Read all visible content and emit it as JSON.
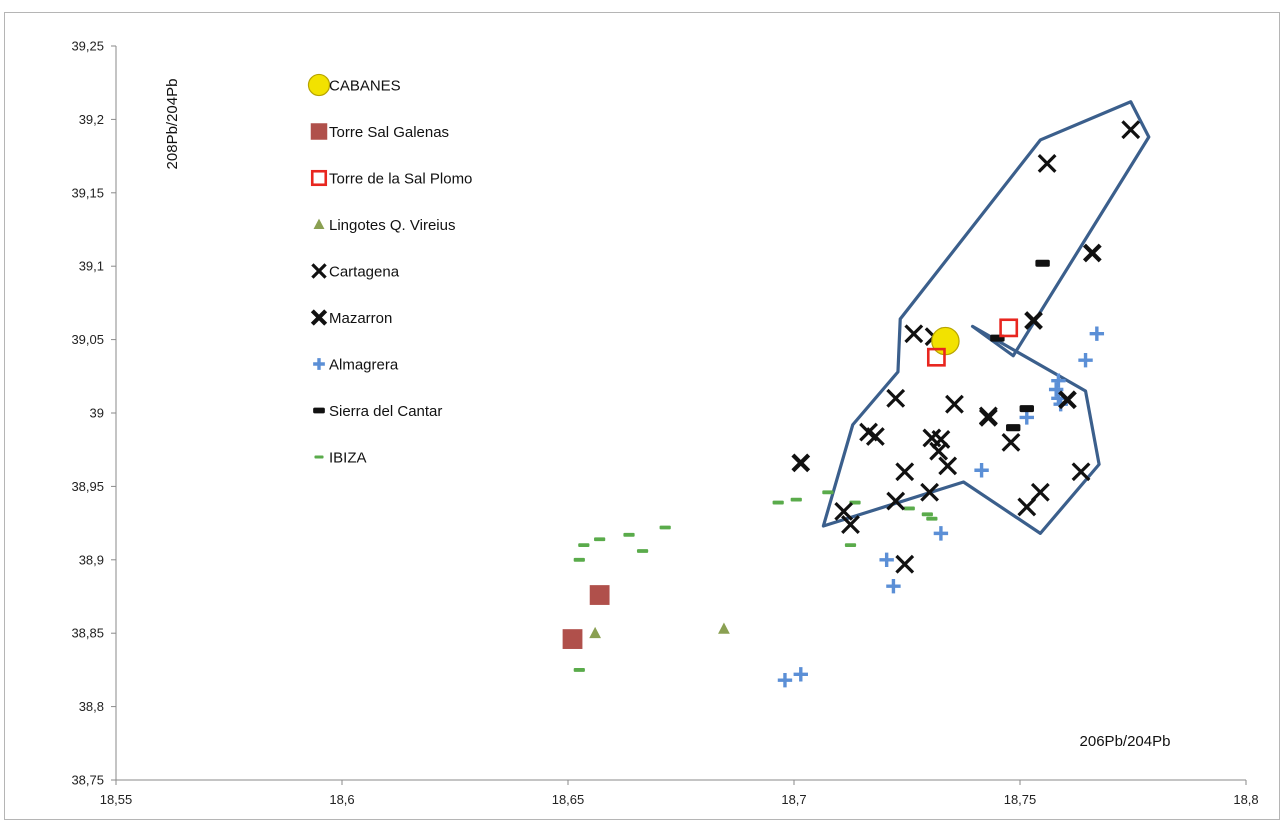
{
  "chart_data": {
    "type": "scatter",
    "title": "",
    "xlabel": "206Pb/204Pb",
    "ylabel": "208Pb/204Pb",
    "xlim": [
      18.55,
      18.8
    ],
    "ylim": [
      38.75,
      39.25
    ],
    "x_ticks": [
      "18,55",
      "18,6",
      "18,65",
      "18,7",
      "18,75",
      "18,8"
    ],
    "y_ticks": [
      "38,75",
      "38,8",
      "38,85",
      "38,9",
      "38,95",
      "39",
      "39,05",
      "39,1",
      "39,15",
      "39,2",
      "39,25"
    ],
    "grid": false,
    "legend_position": "top-left",
    "series": [
      {
        "name": "CABANES",
        "marker": "circle",
        "color": "#f2e200",
        "points": [
          [
            18.7335,
            39.049
          ]
        ]
      },
      {
        "name": "Torre Sal Galenas",
        "marker": "filled-square",
        "color": "#b0504b",
        "points": [
          [
            18.651,
            38.846
          ],
          [
            18.657,
            38.876
          ]
        ]
      },
      {
        "name": "Torre de la Sal Plomo",
        "marker": "open-square",
        "color": "#e8261f",
        "points": [
          [
            18.7315,
            39.038
          ],
          [
            18.7475,
            39.058
          ]
        ]
      },
      {
        "name": "Lingotes Q. Vireius",
        "marker": "triangle",
        "color": "#8aa052",
        "points": [
          [
            18.656,
            38.85
          ],
          [
            18.6845,
            38.853
          ]
        ]
      },
      {
        "name": "Cartagena",
        "marker": "x",
        "color": "#111111",
        "points": [
          [
            18.7265,
            39.054
          ],
          [
            18.731,
            39.052
          ],
          [
            18.7225,
            39.01
          ],
          [
            18.7165,
            38.987
          ],
          [
            18.718,
            38.984
          ],
          [
            18.7305,
            38.983
          ],
          [
            18.7325,
            38.982
          ],
          [
            18.732,
            38.974
          ],
          [
            18.734,
            38.964
          ],
          [
            18.7245,
            38.96
          ],
          [
            18.7225,
            38.94
          ],
          [
            18.73,
            38.946
          ],
          [
            18.711,
            38.933
          ],
          [
            18.7125,
            38.924
          ],
          [
            18.7245,
            38.897
          ],
          [
            18.7355,
            39.006
          ],
          [
            18.743,
            38.998
          ],
          [
            18.748,
            38.98
          ],
          [
            18.7545,
            38.946
          ],
          [
            18.7515,
            38.936
          ],
          [
            18.7635,
            38.96
          ],
          [
            18.756,
            39.17
          ],
          [
            18.7745,
            39.193
          ]
        ]
      },
      {
        "name": "Mazarron",
        "marker": "bold-x",
        "color": "#111111",
        "points": [
          [
            18.7015,
            38.966
          ],
          [
            18.753,
            39.063
          ],
          [
            18.766,
            39.109
          ],
          [
            18.7605,
            39.009
          ],
          [
            18.743,
            38.997
          ]
        ]
      },
      {
        "name": "Almagrera",
        "marker": "plus",
        "color": "#5b8fd6",
        "points": [
          [
            18.767,
            39.054
          ],
          [
            18.7645,
            39.036
          ],
          [
            18.7585,
            39.022
          ],
          [
            18.758,
            39.016
          ],
          [
            18.7585,
            39.01
          ],
          [
            18.759,
            39.006
          ],
          [
            18.7515,
            38.997
          ],
          [
            18.7415,
            38.961
          ],
          [
            18.7325,
            38.918
          ],
          [
            18.7205,
            38.9
          ],
          [
            18.722,
            38.882
          ],
          [
            18.698,
            38.818
          ],
          [
            18.7015,
            38.822
          ]
        ]
      },
      {
        "name": "Sierra del Cantar",
        "marker": "bar",
        "color": "#111111",
        "points": [
          [
            18.755,
            39.102
          ],
          [
            18.745,
            39.051
          ],
          [
            18.7515,
            39.003
          ],
          [
            18.7485,
            38.99
          ]
        ]
      },
      {
        "name": "IBIZA",
        "marker": "dash",
        "color": "#5aab4b",
        "points": [
          [
            18.6535,
            38.91
          ],
          [
            18.657,
            38.914
          ],
          [
            18.6635,
            38.917
          ],
          [
            18.6665,
            38.906
          ],
          [
            18.6715,
            38.922
          ],
          [
            18.6525,
            38.9
          ],
          [
            18.6525,
            38.825
          ],
          [
            18.6965,
            38.939
          ],
          [
            18.7005,
            38.941
          ],
          [
            18.7075,
            38.946
          ],
          [
            18.7135,
            38.939
          ],
          [
            18.7255,
            38.935
          ],
          [
            18.7295,
            38.931
          ],
          [
            18.7305,
            38.928
          ],
          [
            18.7125,
            38.91
          ]
        ]
      }
    ],
    "annotations": [
      {
        "type": "polygon",
        "label": "",
        "color": "#3b5f8c",
        "points": [
          [
            18.7065,
            38.923
          ],
          [
            18.713,
            38.992
          ],
          [
            18.723,
            39.028
          ],
          [
            18.7235,
            39.064
          ],
          [
            18.7545,
            39.186
          ],
          [
            18.7745,
            39.212
          ],
          [
            18.7785,
            39.188
          ],
          [
            18.7485,
            39.039
          ],
          [
            18.7395,
            39.059
          ],
          [
            18.7645,
            39.015
          ],
          [
            18.7675,
            38.965
          ],
          [
            18.7545,
            38.918
          ],
          [
            18.7375,
            38.953
          ],
          [
            18.7065,
            38.923
          ]
        ]
      }
    ]
  }
}
